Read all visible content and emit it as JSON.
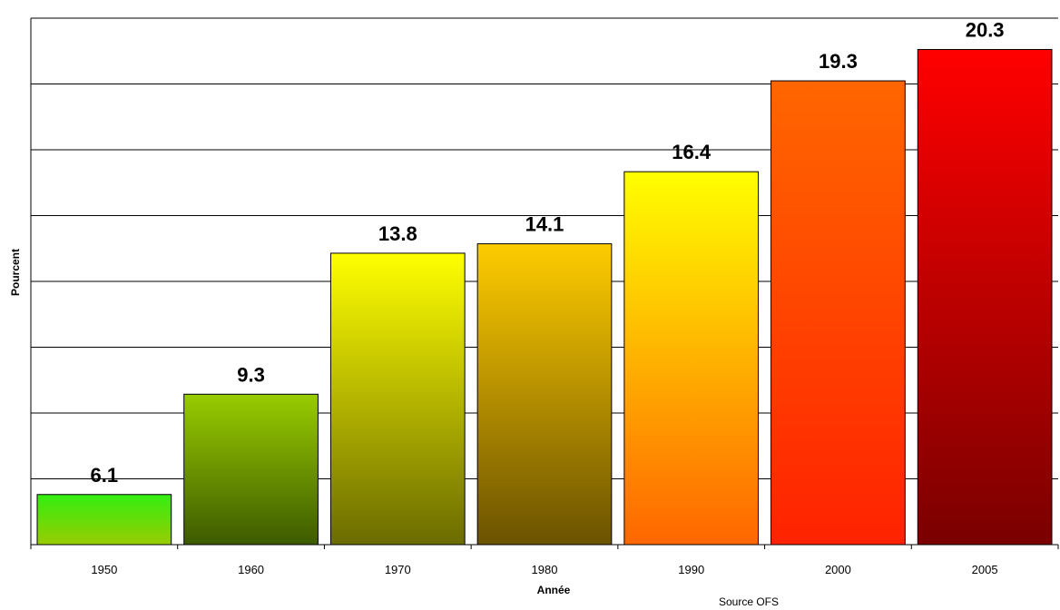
{
  "chart_data": {
    "type": "bar",
    "categories": [
      "1950",
      "1960",
      "1970",
      "1980",
      "1990",
      "2000",
      "2005"
    ],
    "values": [
      6.1,
      9.3,
      13.8,
      14.1,
      16.4,
      19.3,
      20.3
    ],
    "data_labels": [
      "6.1",
      "9.3",
      "13.8",
      "14.1",
      "16.4",
      "19.3",
      "20.3"
    ],
    "title": "",
    "xlabel": "Année",
    "ylabel": "Pourcent",
    "source": "Source OFS",
    "ylim": [
      4.5,
      21.3
    ],
    "y_tick_labels_shown": false,
    "grid": true,
    "bar_gradients": [
      [
        "#33ee11",
        "#99cc00"
      ],
      [
        "#99cc00",
        "#3d5a00"
      ],
      [
        "#ffff00",
        "#6b6b00"
      ],
      [
        "#ffcc00",
        "#6b5200"
      ],
      [
        "#ffff00",
        "#ff6600"
      ],
      [
        "#ff6600",
        "#ff2200"
      ],
      [
        "#ff0000",
        "#7a0000"
      ]
    ]
  }
}
